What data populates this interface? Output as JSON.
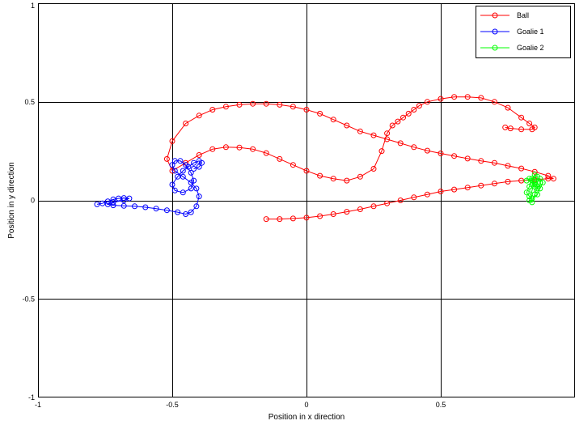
{
  "chart_data": {
    "type": "line",
    "xlabel": "Position in x direction",
    "ylabel": "Position in y direction",
    "xlim": [
      -1,
      1
    ],
    "ylim": [
      -1,
      1
    ],
    "grid": true,
    "legend_position": "top-right",
    "xticks": [
      -1,
      -0.5,
      0,
      0.5,
      1
    ],
    "yticks": [
      -1,
      -0.5,
      0,
      0.5,
      1
    ],
    "xtick_labels": [
      "-1",
      "-0.5",
      "0",
      "0.5",
      ""
    ],
    "ytick_labels": [
      "-1",
      "-0.5",
      "0",
      "0.5",
      "1"
    ],
    "series": [
      {
        "name": "Ball",
        "color": "#ff0000",
        "marker": "circle",
        "x": [
          -0.15,
          -0.1,
          -0.05,
          0.0,
          0.05,
          0.1,
          0.15,
          0.2,
          0.25,
          0.3,
          0.35,
          0.4,
          0.45,
          0.5,
          0.55,
          0.6,
          0.65,
          0.7,
          0.75,
          0.8,
          0.85,
          0.9,
          0.92,
          0.9,
          0.85,
          0.8,
          0.75,
          0.7,
          0.65,
          0.6,
          0.55,
          0.5,
          0.45,
          0.4,
          0.35,
          0.3,
          0.25,
          0.2,
          0.15,
          0.1,
          0.05,
          0.0,
          -0.05,
          -0.1,
          -0.15,
          -0.2,
          -0.25,
          -0.3,
          -0.35,
          -0.4,
          -0.45,
          -0.5,
          -0.52,
          -0.5,
          -0.45,
          -0.4,
          -0.35,
          -0.3,
          -0.25,
          -0.2,
          -0.15,
          -0.1,
          -0.05,
          0.0,
          0.05,
          0.1,
          0.15,
          0.2,
          0.25,
          0.28,
          0.3,
          0.32,
          0.34,
          0.36,
          0.38,
          0.4,
          0.42,
          0.45,
          0.5,
          0.55,
          0.6,
          0.65,
          0.7,
          0.75,
          0.8,
          0.83,
          0.85,
          0.84,
          0.8,
          0.76,
          0.74
        ],
        "y": [
          -0.095,
          -0.095,
          -0.092,
          -0.088,
          -0.08,
          -0.07,
          -0.058,
          -0.045,
          -0.03,
          -0.015,
          0.0,
          0.015,
          0.03,
          0.045,
          0.055,
          0.065,
          0.075,
          0.085,
          0.095,
          0.1,
          0.105,
          0.11,
          0.11,
          0.125,
          0.145,
          0.162,
          0.175,
          0.19,
          0.2,
          0.212,
          0.225,
          0.238,
          0.252,
          0.27,
          0.29,
          0.31,
          0.33,
          0.35,
          0.38,
          0.41,
          0.44,
          0.46,
          0.475,
          0.485,
          0.49,
          0.49,
          0.485,
          0.475,
          0.46,
          0.43,
          0.39,
          0.3,
          0.21,
          0.15,
          0.19,
          0.23,
          0.26,
          0.27,
          0.268,
          0.26,
          0.24,
          0.21,
          0.18,
          0.15,
          0.125,
          0.11,
          0.1,
          0.12,
          0.16,
          0.25,
          0.34,
          0.38,
          0.4,
          0.42,
          0.44,
          0.46,
          0.48,
          0.5,
          0.515,
          0.525,
          0.525,
          0.52,
          0.5,
          0.47,
          0.42,
          0.39,
          0.37,
          0.36,
          0.36,
          0.365,
          0.37
        ]
      },
      {
        "name": "Goalie 1",
        "color": "#0000ff",
        "marker": "circle",
        "x": [
          -0.78,
          -0.76,
          -0.74,
          -0.72,
          -0.7,
          -0.68,
          -0.66,
          -0.68,
          -0.72,
          -0.74,
          -0.72,
          -0.68,
          -0.64,
          -0.6,
          -0.56,
          -0.52,
          -0.48,
          -0.45,
          -0.43,
          -0.41,
          -0.4,
          -0.41,
          -0.43,
          -0.46,
          -0.49,
          -0.5,
          -0.49,
          -0.47,
          -0.45,
          -0.43,
          -0.42,
          -0.43,
          -0.46,
          -0.49,
          -0.5,
          -0.48,
          -0.46,
          -0.44,
          -0.42,
          -0.4,
          -0.39,
          -0.4,
          -0.42
        ],
        "y": [
          -0.02,
          -0.015,
          -0.005,
          0.005,
          0.01,
          0.012,
          0.01,
          0.0,
          -0.01,
          -0.02,
          -0.025,
          -0.028,
          -0.03,
          -0.035,
          -0.042,
          -0.05,
          -0.06,
          -0.07,
          -0.06,
          -0.03,
          0.02,
          0.06,
          0.09,
          0.12,
          0.15,
          0.18,
          0.2,
          0.2,
          0.18,
          0.14,
          0.1,
          0.06,
          0.04,
          0.05,
          0.08,
          0.12,
          0.15,
          0.17,
          0.19,
          0.2,
          0.19,
          0.17,
          0.16
        ]
      },
      {
        "name": "Goalie 2",
        "color": "#00ff00",
        "marker": "circle",
        "x": [
          0.82,
          0.83,
          0.84,
          0.85,
          0.86,
          0.87,
          0.86,
          0.85,
          0.84,
          0.83,
          0.82,
          0.83,
          0.84,
          0.86,
          0.87,
          0.88,
          0.87,
          0.85,
          0.84,
          0.83,
          0.84,
          0.85,
          0.86,
          0.85,
          0.84
        ],
        "y": [
          0.1,
          0.11,
          0.1,
          0.08,
          0.06,
          0.09,
          0.12,
          0.13,
          0.11,
          0.07,
          0.04,
          0.02,
          0.01,
          0.03,
          0.06,
          0.09,
          0.11,
          0.1,
          0.05,
          0.0,
          -0.01,
          0.03,
          0.07,
          0.09,
          0.08
        ]
      }
    ]
  }
}
